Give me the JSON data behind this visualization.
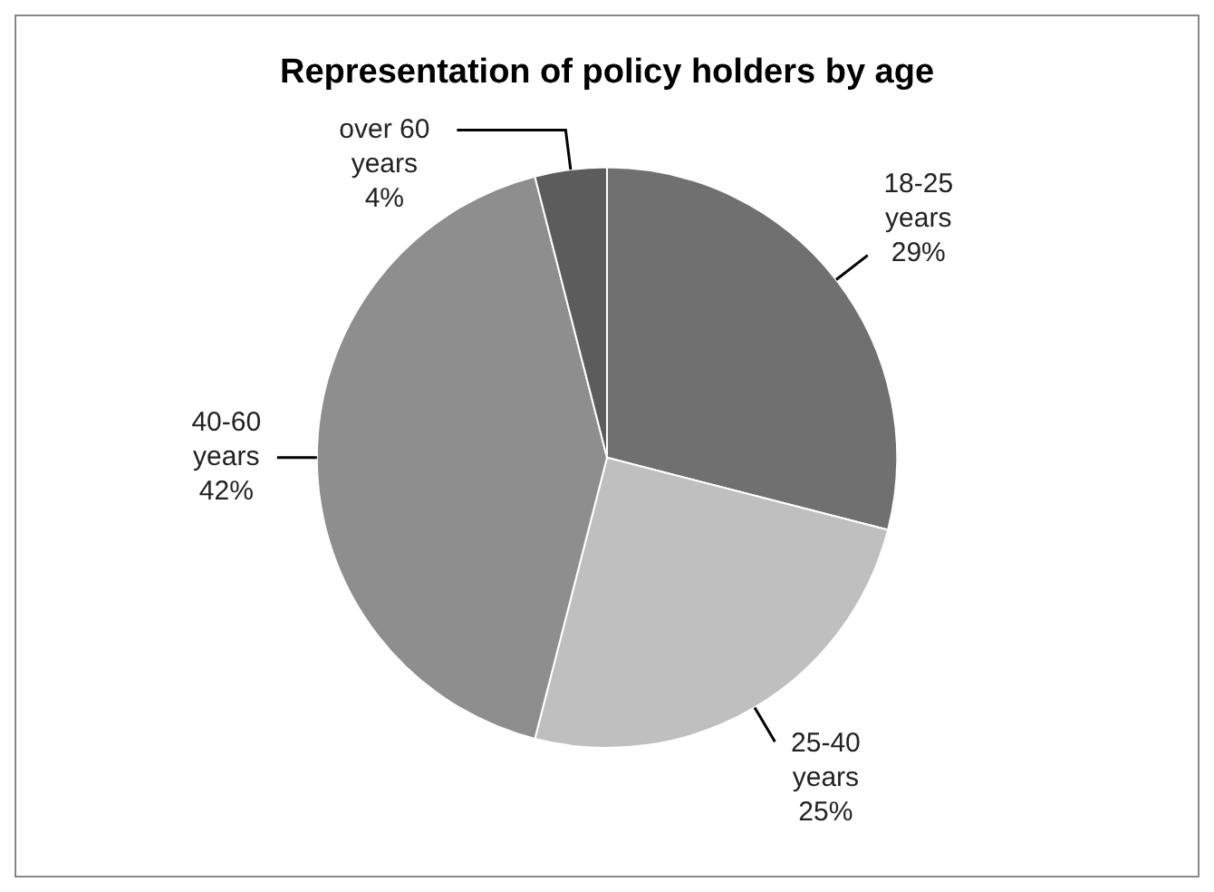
{
  "chart_data": {
    "type": "pie",
    "title": "Representation of policy holders by age",
    "categories": [
      "18-25 years",
      "25-40 years",
      "40-60 years",
      "over 60 years"
    ],
    "values": [
      29,
      25,
      42,
      4
    ],
    "colors": [
      "#707070",
      "#bfbfbf",
      "#8e8e8e",
      "#5c5c5c"
    ],
    "value_labels": [
      "29%",
      "25%",
      "42%",
      "4%"
    ],
    "legend": false
  }
}
